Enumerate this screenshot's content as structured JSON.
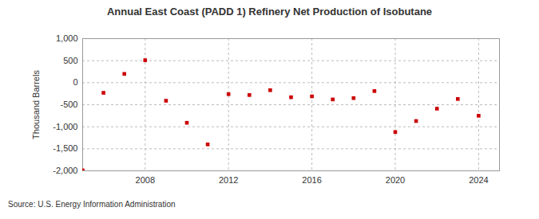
{
  "chart_data": {
    "type": "scatter",
    "title": "Annual East Coast (PADD 1) Refinery Net Production of Isobutane",
    "y_label": "Thousand Barrels",
    "source": "Source: U.S. Energy Information Administration",
    "x": [
      2005,
      2006,
      2007,
      2008,
      2009,
      2010,
      2011,
      2012,
      2013,
      2014,
      2015,
      2016,
      2017,
      2018,
      2019,
      2020,
      2021,
      2022,
      2023,
      2024
    ],
    "values": [
      -1990,
      -230,
      200,
      510,
      -410,
      -910,
      -1400,
      -260,
      -280,
      -170,
      -330,
      -310,
      -380,
      -350,
      -190,
      -1120,
      -870,
      -590,
      -370,
      -750
    ],
    "color": "#cc0000",
    "marker": "square",
    "xlim": [
      2005,
      2025
    ],
    "xticks": [
      2008,
      2012,
      2016,
      2020,
      2024
    ],
    "ylim": [
      -2000,
      1000
    ],
    "yticks": [
      {
        "value": -2000,
        "label": "-2,000"
      },
      {
        "value": -1500,
        "label": "-1,500"
      },
      {
        "value": -1000,
        "label": "-1,000"
      },
      -500,
      0,
      500,
      {
        "value": 1000,
        "label": "1,000"
      }
    ],
    "grid": true
  }
}
